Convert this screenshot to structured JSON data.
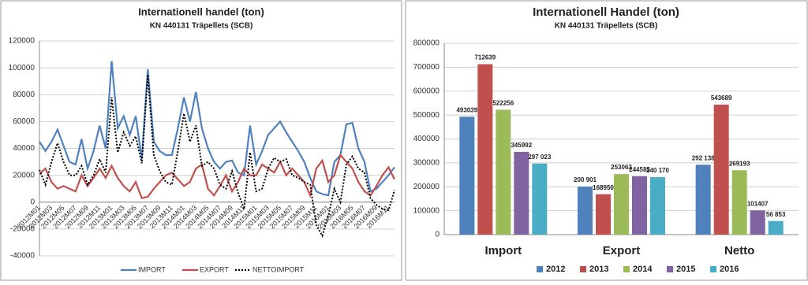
{
  "chart_data": [
    {
      "type": "line",
      "title": "Internationell handel (ton)",
      "subtitle": "KN 440131 Träpellets (SCB)",
      "categories": [
        "2012M01",
        null,
        "2012M03",
        null,
        "2012M05",
        null,
        "2012M07",
        null,
        "2012M09",
        null,
        "2012M11",
        null,
        "2013M01",
        null,
        "2013M03",
        null,
        "2013M05",
        null,
        "2013M07",
        null,
        "2013M09",
        null,
        "2013M11",
        null,
        "2014M01",
        null,
        "2014M03",
        null,
        "2014M05",
        null,
        "2014M07",
        null,
        "2014M09",
        null,
        "2014M11",
        null,
        "2015M01",
        null,
        "2015M03",
        null,
        "2015M05",
        null,
        "2015M07",
        null,
        "2015M09",
        null,
        "2015M11",
        null,
        "2016M01",
        null,
        "2016M03",
        null,
        "2016M05",
        null,
        "2016M07",
        null,
        "2016M09",
        null,
        "2016M11",
        null
      ],
      "series": [
        {
          "name": "IMPORT",
          "color": "#4f81bd",
          "line_style": "solid",
          "values": [
            45000,
            38000,
            45000,
            54000,
            42000,
            30000,
            28000,
            47000,
            25000,
            38000,
            57000,
            40000,
            105000,
            55000,
            64000,
            50000,
            64000,
            32000,
            99000,
            45000,
            38000,
            35000,
            35000,
            55000,
            78000,
            60000,
            82000,
            55000,
            40000,
            30000,
            25000,
            30000,
            31000,
            22000,
            20000,
            57000,
            28000,
            38000,
            50000,
            55000,
            60000,
            52000,
            45000,
            38000,
            30000,
            18000,
            8000,
            6000,
            5000,
            30000,
            35000,
            58000,
            59000,
            40000,
            30000,
            8000,
            10000,
            15000,
            20000,
            26000
          ]
        },
        {
          "name": "EXPORT",
          "color": "#c0504d",
          "line_style": "solid",
          "values": [
            21000,
            25000,
            15000,
            10000,
            12000,
            10000,
            8000,
            20000,
            12000,
            18000,
            25000,
            18000,
            27000,
            18000,
            12000,
            8000,
            15000,
            3000,
            4000,
            10000,
            15000,
            20000,
            22000,
            17000,
            12000,
            15000,
            25000,
            28000,
            10000,
            5000,
            12000,
            20000,
            8000,
            15000,
            25000,
            20000,
            20000,
            28000,
            25000,
            22000,
            30000,
            20000,
            25000,
            20000,
            15000,
            5000,
            25000,
            31000,
            15000,
            20000,
            35000,
            30000,
            25000,
            15000,
            8000,
            5000,
            12000,
            20000,
            26000,
            17000
          ]
        },
        {
          "name": "NETTOIMPORT",
          "color": "#000000",
          "line_style": "dotted",
          "values": [
            24000,
            13000,
            30000,
            44000,
            30000,
            20000,
            20000,
            27000,
            13000,
            20000,
            32000,
            22000,
            78000,
            37000,
            52000,
            42000,
            49000,
            29000,
            95000,
            35000,
            23000,
            15000,
            13000,
            38000,
            66000,
            45000,
            57000,
            27000,
            30000,
            25000,
            13000,
            10000,
            23000,
            7000,
            -5000,
            37000,
            8000,
            10000,
            25000,
            33000,
            30000,
            32000,
            20000,
            18000,
            15000,
            13000,
            -17000,
            -25000,
            -10000,
            10000,
            0,
            28000,
            34000,
            25000,
            22000,
            3000,
            -2000,
            -5000,
            -6000,
            9000
          ]
        }
      ],
      "ylim": [
        -40000,
        120000
      ],
      "yticks": [
        -40000,
        -20000,
        0,
        20000,
        40000,
        60000,
        80000,
        100000,
        120000
      ],
      "grid": true,
      "legend": "bottom"
    },
    {
      "type": "bar",
      "title": "Internationell Handel (ton)",
      "subtitle": "KN 440131 Träpellets (SCB)",
      "categories": [
        "Import",
        "Export",
        "Netto"
      ],
      "series": [
        {
          "name": "2012",
          "color": "#4f81bd",
          "values": [
            493039,
            200901,
            292138
          ],
          "value_labels": [
            "493039",
            "200 901",
            "292 138"
          ]
        },
        {
          "name": "2013",
          "color": "#c0504d",
          "values": [
            712639,
            168950,
            543689
          ],
          "value_labels": [
            "712639",
            "168950",
            "543689"
          ]
        },
        {
          "name": "2014",
          "color": "#9bbb59",
          "values": [
            522256,
            253063,
            269193
          ],
          "value_labels": [
            "522256",
            "253063",
            "269193"
          ]
        },
        {
          "name": "2015",
          "color": "#8064a2",
          "values": [
            345992,
            244585,
            101407
          ],
          "value_labels": [
            "345992",
            "244585",
            "101407"
          ]
        },
        {
          "name": "2016",
          "color": "#4bacc6",
          "values": [
            297023,
            240170,
            56853
          ],
          "value_labels": [
            "297 023",
            "240 170",
            "56 853"
          ]
        }
      ],
      "ylim": [
        0,
        800000
      ],
      "yticks": [
        0,
        100000,
        200000,
        300000,
        400000,
        500000,
        600000,
        700000,
        800000
      ],
      "grid": true,
      "legend": "bottom"
    }
  ]
}
